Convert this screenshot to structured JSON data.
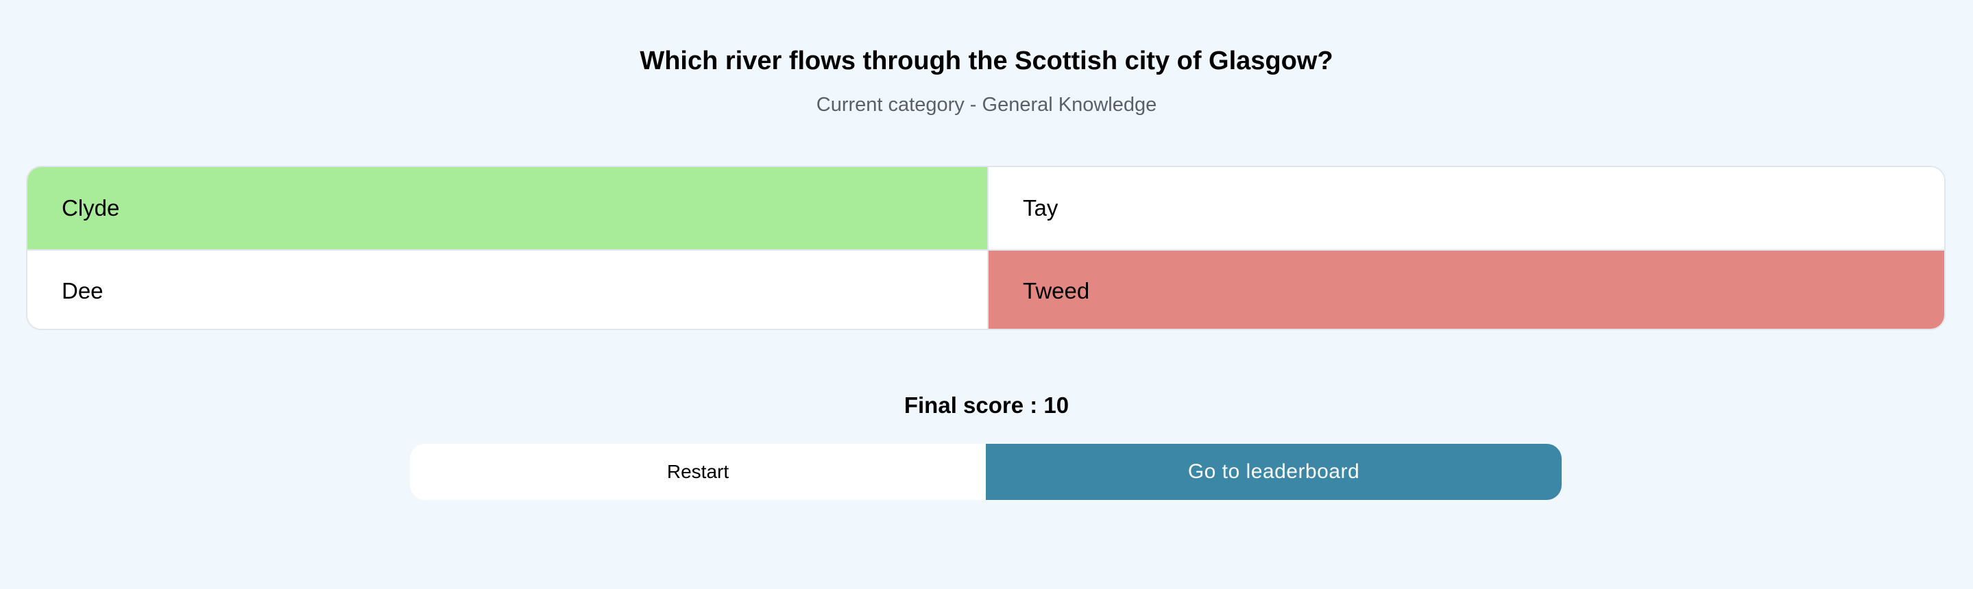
{
  "quiz": {
    "question": "Which river flows through the Scottish city of Glasgow?",
    "category": "Current category - General Knowledge"
  },
  "answers": [
    {
      "label": "Clyde",
      "state": "correct"
    },
    {
      "label": "Tay",
      "state": "neutral"
    },
    {
      "label": "Dee",
      "state": "neutral"
    },
    {
      "label": "Tweed",
      "state": "wrong"
    }
  ],
  "result": {
    "final_score": "Final score : 10"
  },
  "buttons": {
    "restart_label": "Restart",
    "leaderboard_label": "Go to leaderboard"
  },
  "colors": {
    "background": "#f0f7fd",
    "correct": "#a8ec9a",
    "wrong": "#e38782",
    "primary": "#3b87a5"
  }
}
